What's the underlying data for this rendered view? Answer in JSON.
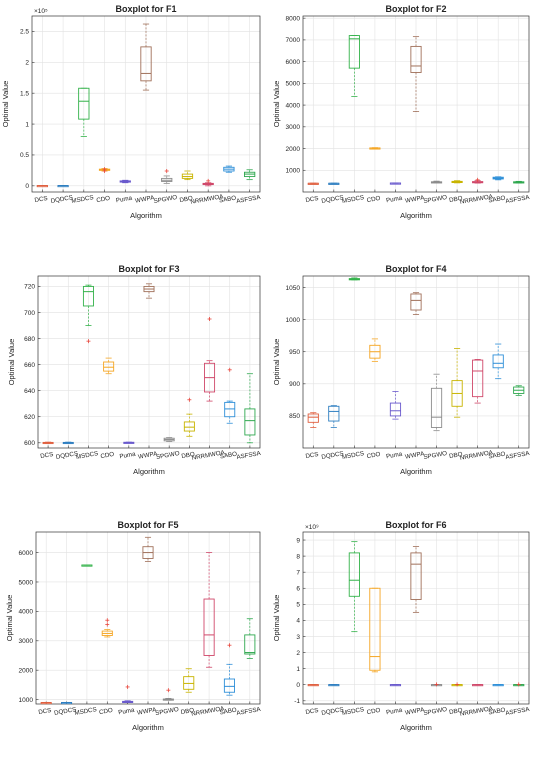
{
  "chart_data": [
    {
      "type": "boxplot",
      "title": "Boxplot for F1",
      "xlabel": "Algorithm",
      "ylabel": "Optimal Value",
      "multiplier": "×10⁵",
      "ylim": [
        -0.1,
        2.75
      ],
      "yticks": [
        0,
        0.5,
        1,
        1.5,
        2,
        2.5
      ],
      "ytick_labels": [
        "0",
        "0.5",
        "1",
        "1.5",
        "2",
        "2.5"
      ],
      "categories": [
        "DCS",
        "DQDCS",
        "MSDCS",
        "CDO",
        "Puma",
        "WWPA",
        "SPGWO",
        "DBO",
        "NRRMWOA",
        "SABO",
        "ASFSSA"
      ],
      "grid": true,
      "boxes": [
        {
          "min": 0.003,
          "q1": 0.003,
          "median": 0.004,
          "q3": 0.005,
          "max": 0.006,
          "outliers": []
        },
        {
          "min": 0.003,
          "q1": 0.003,
          "median": 0.004,
          "q3": 0.005,
          "max": 0.006,
          "outliers": []
        },
        {
          "min": 0.8,
          "q1": 1.08,
          "median": 1.37,
          "q3": 1.58,
          "max": 1.58,
          "outliers": []
        },
        {
          "min": 0.24,
          "q1": 0.25,
          "median": 0.26,
          "q3": 0.27,
          "max": 0.28,
          "outliers": [
            0.24,
            0.27
          ]
        },
        {
          "min": 0.05,
          "q1": 0.06,
          "median": 0.07,
          "q3": 0.08,
          "max": 0.09,
          "outliers": []
        },
        {
          "min": 1.55,
          "q1": 1.7,
          "median": 1.82,
          "q3": 2.25,
          "max": 2.62,
          "outliers": []
        },
        {
          "min": 0.04,
          "q1": 0.07,
          "median": 0.09,
          "q3": 0.12,
          "max": 0.16,
          "outliers": [
            0.24
          ]
        },
        {
          "min": 0.1,
          "q1": 0.12,
          "median": 0.15,
          "q3": 0.19,
          "max": 0.24,
          "outliers": []
        },
        {
          "min": 0.0,
          "q1": 0.02,
          "median": 0.03,
          "q3": 0.04,
          "max": 0.05,
          "outliers": [
            0.08
          ]
        },
        {
          "min": 0.22,
          "q1": 0.24,
          "median": 0.27,
          "q3": 0.3,
          "max": 0.32,
          "outliers": []
        },
        {
          "min": 0.1,
          "q1": 0.15,
          "median": 0.19,
          "q3": 0.22,
          "max": 0.26,
          "outliers": []
        }
      ]
    },
    {
      "type": "boxplot",
      "title": "Boxplot for F2",
      "xlabel": "Algorithm",
      "ylabel": "Optimal Value",
      "ylim": [
        0,
        8100
      ],
      "yticks": [
        1000,
        2000,
        3000,
        4000,
        5000,
        6000,
        7000,
        8000
      ],
      "ytick_labels": [
        "1000",
        "2000",
        "3000",
        "4000",
        "5000",
        "6000",
        "7000",
        "8000"
      ],
      "categories": [
        "DCS",
        "DQDCS",
        "MSDCS",
        "CDO",
        "Puma",
        "WWPA",
        "SPGWO",
        "DBO",
        "NRRMWOA",
        "SABO",
        "ASFSSA"
      ],
      "grid": true,
      "boxes": [
        {
          "min": 400,
          "q1": 400,
          "median": 401,
          "q3": 402,
          "max": 404,
          "outliers": []
        },
        {
          "min": 400,
          "q1": 400,
          "median": 401,
          "q3": 402,
          "max": 404,
          "outliers": []
        },
        {
          "min": 4400,
          "q1": 5700,
          "median": 7050,
          "q3": 7200,
          "max": 7200,
          "outliers": []
        },
        {
          "min": 1980,
          "q1": 2000,
          "median": 2020,
          "q3": 2030,
          "max": 2040,
          "outliers": []
        },
        {
          "min": 400,
          "q1": 405,
          "median": 410,
          "q3": 415,
          "max": 420,
          "outliers": []
        },
        {
          "min": 3700,
          "q1": 5500,
          "median": 5800,
          "q3": 6700,
          "max": 7150,
          "outliers": []
        },
        {
          "min": 420,
          "q1": 430,
          "median": 440,
          "q3": 470,
          "max": 500,
          "outliers": []
        },
        {
          "min": 420,
          "q1": 440,
          "median": 460,
          "q3": 490,
          "max": 520,
          "outliers": []
        },
        {
          "min": 410,
          "q1": 430,
          "median": 450,
          "q3": 480,
          "max": 520,
          "outliers": [
            560
          ]
        },
        {
          "min": 560,
          "q1": 600,
          "median": 640,
          "q3": 680,
          "max": 700,
          "outliers": []
        },
        {
          "min": 410,
          "q1": 430,
          "median": 450,
          "q3": 470,
          "max": 490,
          "outliers": []
        }
      ]
    },
    {
      "type": "boxplot",
      "title": "Boxplot for F3",
      "xlabel": "Algorithm",
      "ylabel": "Optimal Value",
      "ylim": [
        596,
        728
      ],
      "yticks": [
        600,
        620,
        640,
        660,
        680,
        700,
        720
      ],
      "ytick_labels": [
        "600",
        "620",
        "640",
        "660",
        "680",
        "700",
        "720"
      ],
      "categories": [
        "DCS",
        "DQDCS",
        "MSDCS",
        "CDO",
        "Puma",
        "WWPA",
        "SPGWO",
        "DBO",
        "NRRMWOA",
        "SABO",
        "ASFSSA"
      ],
      "grid": true,
      "boxes": [
        {
          "min": 600,
          "q1": 600,
          "median": 600,
          "q3": 600.3,
          "max": 600.5,
          "outliers": []
        },
        {
          "min": 600,
          "q1": 600,
          "median": 600,
          "q3": 600.3,
          "max": 600.5,
          "outliers": []
        },
        {
          "min": 690,
          "q1": 705,
          "median": 716,
          "q3": 720,
          "max": 721,
          "outliers": [
            678
          ]
        },
        {
          "min": 653,
          "q1": 655,
          "median": 658,
          "q3": 662,
          "max": 665,
          "outliers": []
        },
        {
          "min": 600,
          "q1": 600,
          "median": 600.2,
          "q3": 600.4,
          "max": 600.5,
          "outliers": []
        },
        {
          "min": 711,
          "q1": 716,
          "median": 718,
          "q3": 720,
          "max": 722,
          "outliers": []
        },
        {
          "min": 601,
          "q1": 601.5,
          "median": 602.5,
          "q3": 603.5,
          "max": 604,
          "outliers": []
        },
        {
          "min": 605,
          "q1": 609,
          "median": 612,
          "q3": 616,
          "max": 622,
          "outliers": [
            633
          ]
        },
        {
          "min": 632,
          "q1": 639,
          "median": 650,
          "q3": 661,
          "max": 663,
          "outliers": [
            695
          ]
        },
        {
          "min": 615,
          "q1": 620,
          "median": 626,
          "q3": 631,
          "max": 632,
          "outliers": [
            656
          ]
        },
        {
          "min": 600,
          "q1": 606,
          "median": 617,
          "q3": 626,
          "max": 653,
          "outliers": []
        }
      ]
    },
    {
      "type": "boxplot",
      "title": "Boxplot for F4",
      "xlabel": "Algorithm",
      "ylabel": "Optimal Value",
      "ylim": [
        800,
        1068
      ],
      "yticks": [
        850,
        900,
        950,
        1000,
        1050
      ],
      "ytick_labels": [
        "850",
        "900",
        "950",
        "1000",
        "1050"
      ],
      "categories": [
        "DCS",
        "DQDCS",
        "MSDCS",
        "CDO",
        "Puma",
        "WWPA",
        "SPGWO",
        "DBO",
        "NRRMWOA",
        "SABO",
        "ASFSSA"
      ],
      "grid": true,
      "boxes": [
        {
          "min": 832,
          "q1": 840,
          "median": 848,
          "q3": 853,
          "max": 855,
          "outliers": []
        },
        {
          "min": 832,
          "q1": 842,
          "median": 857,
          "q3": 865,
          "max": 866,
          "outliers": []
        },
        {
          "min": 1062,
          "q1": 1062,
          "median": 1063,
          "q3": 1064,
          "max": 1065,
          "outliers": []
        },
        {
          "min": 935,
          "q1": 940,
          "median": 950,
          "q3": 960,
          "max": 970,
          "outliers": []
        },
        {
          "min": 845,
          "q1": 850,
          "median": 858,
          "q3": 870,
          "max": 888,
          "outliers": []
        },
        {
          "min": 1008,
          "q1": 1015,
          "median": 1030,
          "q3": 1040,
          "max": 1042,
          "outliers": []
        },
        {
          "min": 827,
          "q1": 832,
          "median": 848,
          "q3": 893,
          "max": 915,
          "outliers": []
        },
        {
          "min": 848,
          "q1": 865,
          "median": 885,
          "q3": 905,
          "max": 955,
          "outliers": []
        },
        {
          "min": 870,
          "q1": 880,
          "median": 920,
          "q3": 937,
          "max": 938,
          "outliers": []
        },
        {
          "min": 908,
          "q1": 925,
          "median": 932,
          "q3": 945,
          "max": 962,
          "outliers": []
        },
        {
          "min": 882,
          "q1": 885,
          "median": 890,
          "q3": 895,
          "max": 897,
          "outliers": []
        }
      ]
    },
    {
      "type": "boxplot",
      "title": "Boxplot for F5",
      "xlabel": "Algorithm",
      "ylabel": "Optimal Value",
      "ylim": [
        850,
        6700
      ],
      "yticks": [
        1000,
        2000,
        3000,
        4000,
        5000,
        6000
      ],
      "ytick_labels": [
        "1000",
        "2000",
        "3000",
        "4000",
        "5000",
        "6000"
      ],
      "categories": [
        "DCS",
        "DQDCS",
        "MSDCS",
        "CDO",
        "Puma",
        "WWPA",
        "SPGWO",
        "DBO",
        "NRRMWOA",
        "SABO",
        "ASFSSA"
      ],
      "grid": true,
      "boxes": [
        {
          "min": 898,
          "q1": 900,
          "median": 901,
          "q3": 903,
          "max": 905,
          "outliers": []
        },
        {
          "min": 898,
          "q1": 900,
          "median": 901,
          "q3": 903,
          "max": 905,
          "outliers": []
        },
        {
          "min": 5570,
          "q1": 5572,
          "median": 5575,
          "q3": 5578,
          "max": 5580,
          "outliers": []
        },
        {
          "min": 3130,
          "q1": 3180,
          "median": 3250,
          "q3": 3330,
          "max": 3380,
          "outliers": [
            3550,
            3700
          ]
        },
        {
          "min": 900,
          "q1": 910,
          "median": 920,
          "q3": 940,
          "max": 960,
          "outliers": [
            1430
          ]
        },
        {
          "min": 5700,
          "q1": 5800,
          "median": 6000,
          "q3": 6200,
          "max": 6520,
          "outliers": []
        },
        {
          "min": 980,
          "q1": 990,
          "median": 1000,
          "q3": 1020,
          "max": 1040,
          "outliers": [
            1320
          ]
        },
        {
          "min": 1250,
          "q1": 1350,
          "median": 1550,
          "q3": 1780,
          "max": 2050,
          "outliers": []
        },
        {
          "min": 2100,
          "q1": 2500,
          "median": 3200,
          "q3": 4420,
          "max": 6000,
          "outliers": []
        },
        {
          "min": 1150,
          "q1": 1250,
          "median": 1450,
          "q3": 1700,
          "max": 2200,
          "outliers": [
            2850
          ]
        },
        {
          "min": 2400,
          "q1": 2550,
          "median": 2600,
          "q3": 3200,
          "max": 3750,
          "outliers": []
        }
      ]
    },
    {
      "type": "boxplot",
      "title": "Boxplot for F6",
      "xlabel": "Algorithm",
      "ylabel": "Optimal Value",
      "multiplier": "×10⁹",
      "ylim": [
        -1.2,
        9.5
      ],
      "yticks": [
        -1,
        0,
        1,
        2,
        3,
        4,
        5,
        6,
        7,
        8,
        9
      ],
      "ytick_labels": [
        "-1",
        "0",
        "1",
        "2",
        "3",
        "4",
        "5",
        "6",
        "7",
        "8",
        "9"
      ],
      "categories": [
        "DCS",
        "DQDCS",
        "MSDCS",
        "CDO",
        "Puma",
        "WWPA",
        "SPGWO",
        "DBO",
        "NRRMWOA",
        "SABO",
        "ASFSSA"
      ],
      "grid": true,
      "boxes": [
        {
          "min": 0,
          "q1": 0,
          "median": 0,
          "q3": 0.01,
          "max": 0.01,
          "outliers": []
        },
        {
          "min": 0,
          "q1": 0,
          "median": 0,
          "q3": 0.01,
          "max": 0.01,
          "outliers": []
        },
        {
          "min": 3.3,
          "q1": 5.5,
          "median": 6.5,
          "q3": 8.2,
          "max": 8.9,
          "outliers": []
        },
        {
          "min": 0.8,
          "q1": 0.9,
          "median": 1.75,
          "q3": 6.0,
          "max": 6.0,
          "outliers": []
        },
        {
          "min": 0,
          "q1": 0,
          "median": 0,
          "q3": 0.01,
          "max": 0.01,
          "outliers": []
        },
        {
          "min": 4.5,
          "q1": 5.3,
          "median": 7.5,
          "q3": 8.2,
          "max": 8.6,
          "outliers": []
        },
        {
          "min": 0,
          "q1": 0,
          "median": 0,
          "q3": 0.01,
          "max": 0.01,
          "outliers": [
            0.02
          ]
        },
        {
          "min": 0,
          "q1": 0,
          "median": 0,
          "q3": 0.01,
          "max": 0.01,
          "outliers": [
            0.02
          ]
        },
        {
          "min": 0,
          "q1": 0,
          "median": 0,
          "q3": 0.01,
          "max": 0.01,
          "outliers": []
        },
        {
          "min": 0,
          "q1": 0,
          "median": 0,
          "q3": 0.01,
          "max": 0.01,
          "outliers": []
        },
        {
          "min": 0,
          "q1": 0,
          "median": 0,
          "q3": 0.01,
          "max": 0.01,
          "outliers": [
            0.02
          ]
        }
      ]
    }
  ],
  "series_colors": [
    "#e06040",
    "#2f7fc1",
    "#33b24a",
    "#f5a623",
    "#6a5acd",
    "#a0705a",
    "#8c8c8c",
    "#c8b400",
    "#d0486a",
    "#2e8fd8",
    "#2fa84f"
  ],
  "outlier_color": "#e8443a"
}
